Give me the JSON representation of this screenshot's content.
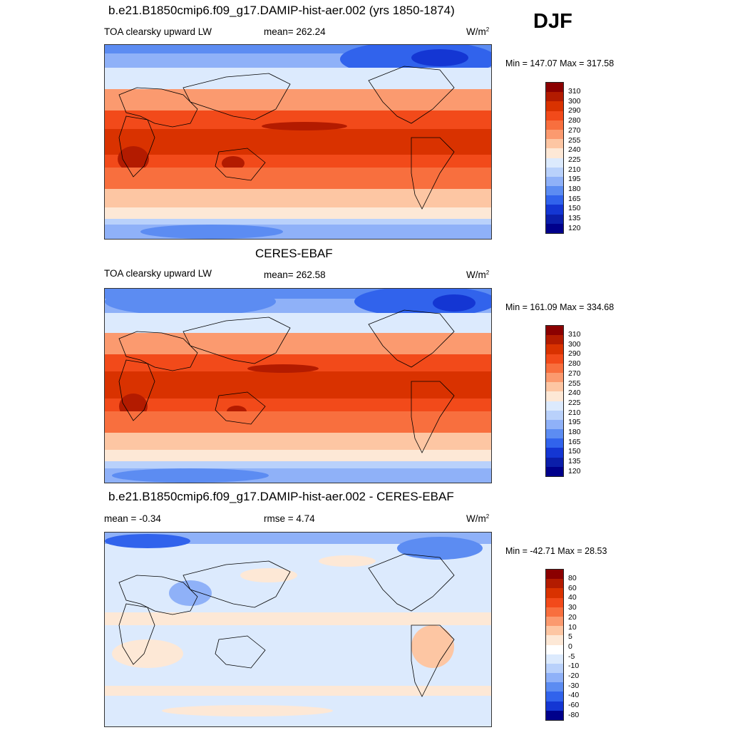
{
  "season": "DJF",
  "panels": [
    {
      "title": "b.e21.B1850cmip6.f09_g17.DAMIP-hist-aer.002 (yrs 1850-1874)",
      "left_label": "TOA clearsky upward LW",
      "mid_label": "mean= 262.24",
      "units_base": "W/m",
      "units_exp": "2",
      "minmax": "Min = 147.07 Max = 317.58"
    },
    {
      "title": "CERES-EBAF",
      "left_label": "TOA clearsky upward LW",
      "mid_label": "mean= 262.58",
      "units_base": "W/m",
      "units_exp": "2",
      "minmax": "Min = 161.09 Max = 334.68"
    },
    {
      "title": "b.e21.B1850cmip6.f09_g17.DAMIP-hist-aer.002 - CERES-EBAF",
      "left_label": "mean =  -0.34",
      "mid_label": "rmse =   4.74",
      "units_base": "W/m",
      "units_exp": "2",
      "minmax": "Min = -42.71 Max =  28.53"
    }
  ],
  "colorbar_abs": {
    "levels": [
      "310",
      "300",
      "290",
      "280",
      "270",
      "255",
      "240",
      "225",
      "210",
      "195",
      "180",
      "165",
      "150",
      "135",
      "120"
    ],
    "colors": [
      "#8b0000",
      "#b31b00",
      "#d93200",
      "#f24a1a",
      "#f86f3e",
      "#fb9a6f",
      "#fdc6a3",
      "#fde8d6",
      "#dceafd",
      "#b9d1fb",
      "#8fb1f8",
      "#5c8cf2",
      "#3163ec",
      "#1436d3",
      "#0b1eaa",
      "#00008b"
    ]
  },
  "colorbar_diff": {
    "levels": [
      "80",
      "60",
      "40",
      "30",
      "20",
      "10",
      "5",
      "0",
      "-5",
      "-10",
      "-20",
      "-30",
      "-40",
      "-60",
      "-80"
    ],
    "colors": [
      "#8b0000",
      "#b31b00",
      "#d93200",
      "#f24a1a",
      "#f86f3e",
      "#fb9a6f",
      "#fdc6a3",
      "#fde8d6",
      "#ffffff",
      "#dceafd",
      "#b9d1fb",
      "#8fb1f8",
      "#5c8cf2",
      "#3163ec",
      "#1436d3",
      "#00008b"
    ]
  }
}
